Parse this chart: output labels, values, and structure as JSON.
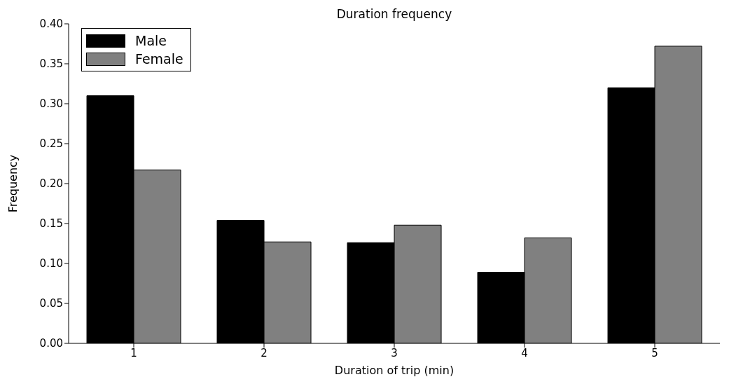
{
  "chart_data": {
    "type": "bar",
    "title": "Duration frequency",
    "xlabel": "Duration of trip (min)",
    "ylabel": "Frequency",
    "categories": [
      "1",
      "2",
      "3",
      "4",
      "5"
    ],
    "series": [
      {
        "name": "Male",
        "color": "#000000",
        "values": [
          0.31,
          0.154,
          0.126,
          0.089,
          0.32
        ]
      },
      {
        "name": "Female",
        "color": "#808080",
        "values": [
          0.217,
          0.127,
          0.148,
          0.132,
          0.372
        ]
      }
    ],
    "ylim": [
      0,
      0.4
    ],
    "yticks": [
      {
        "value": 0,
        "label": "0.00"
      },
      {
        "value": 0.05,
        "label": "0.05"
      },
      {
        "value": 0.1,
        "label": "0.10"
      },
      {
        "value": 0.15,
        "label": "0.15"
      },
      {
        "value": 0.2,
        "label": "0.20"
      },
      {
        "value": 0.25,
        "label": "0.25"
      },
      {
        "value": 0.3,
        "label": "0.30"
      },
      {
        "value": 0.35,
        "label": "0.35"
      },
      {
        "value": 0.4,
        "label": "0.40"
      }
    ],
    "grid": false,
    "legend": "top left"
  }
}
